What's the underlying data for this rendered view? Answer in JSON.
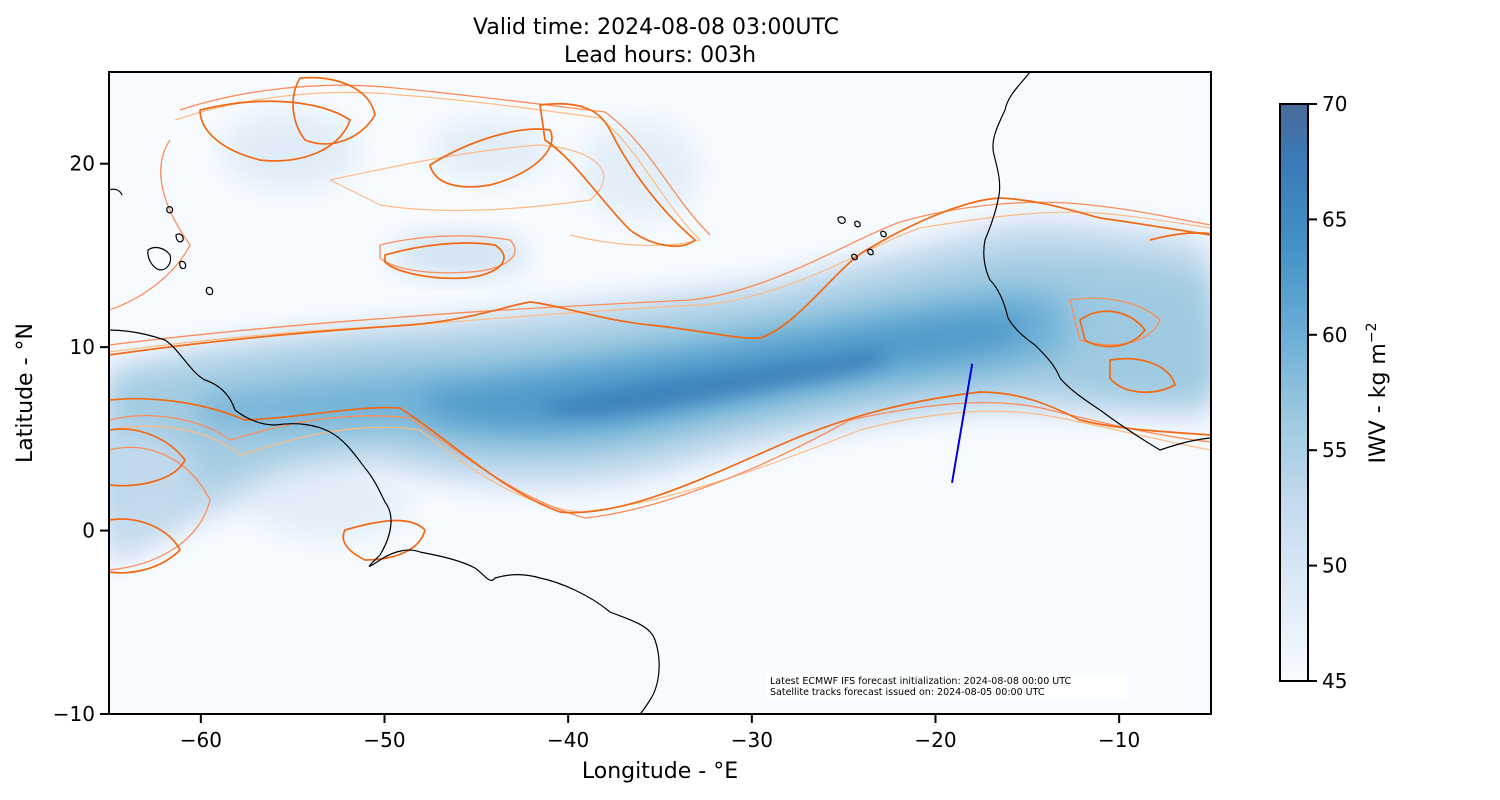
{
  "figure": {
    "title_line1": "Valid time: 2024-08-08 03:00UTC",
    "title_line2": "Lead hours: 003h"
  },
  "map": {
    "xlabel": "Longitude - °E",
    "ylabel": "Latitude - °N",
    "xlim": [
      -65,
      -5
    ],
    "ylim": [
      -10,
      25
    ],
    "x_ticks": [
      -60,
      -50,
      -40,
      -30,
      -20,
      -10
    ],
    "x_tick_labels": [
      "−60",
      "−50",
      "−40",
      "−30",
      "−20",
      "−10"
    ],
    "y_ticks": [
      -10,
      0,
      10,
      20
    ],
    "y_tick_labels": [
      "−10",
      "0",
      "10",
      "20"
    ],
    "field": "IWV",
    "contour_colors": [
      "#fdbb84",
      "#fc8d59",
      "#f16913",
      "#e6550d"
    ],
    "coastline_color": "#000000",
    "satellite_track": {
      "color": "#0000dd",
      "start": {
        "lon": -19.1,
        "lat": 2.6
      },
      "end": {
        "lon": -18.0,
        "lat": 9.1
      }
    },
    "annotation": {
      "line1": "Latest ECMWF IFS forecast initialization: 2024-08-08 00:00 UTC",
      "line2": "Satellite tracks forecast issued on: 2024-08-05 00:00 UTC"
    }
  },
  "colorbar": {
    "label": "IWV - kg m",
    "label_sup": "−2",
    "min": 45,
    "max": 70,
    "ticks": [
      45,
      50,
      55,
      60,
      65,
      70
    ],
    "tick_labels": [
      "45",
      "50",
      "55",
      "60",
      "65",
      "70"
    ],
    "colormap": [
      "#f7fbff",
      "#deebf7",
      "#c6dbef",
      "#9ecae1",
      "#6baed6",
      "#4292c6",
      "#2171b5",
      "#4a6fa0"
    ]
  }
}
